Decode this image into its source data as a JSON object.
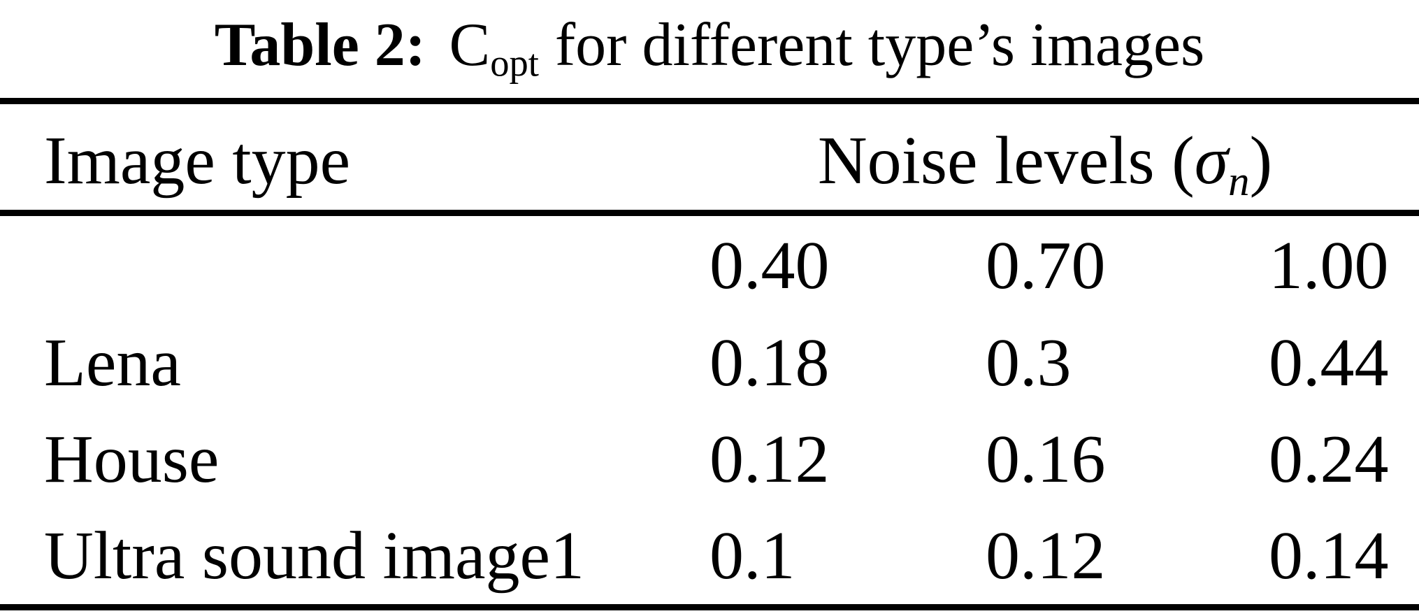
{
  "title": {
    "prefix": "Table 2:",
    "symbol_base": "C",
    "symbol_sub": "opt",
    "suffix": "for different type’s images"
  },
  "table": {
    "col1_header": "Image type",
    "group_header": {
      "prefix": "Noise levels (",
      "sigma": "σ",
      "sigma_sub": "n",
      "suffix": ")"
    },
    "noise_levels": [
      "0.40",
      "0.70",
      "1.00"
    ],
    "rows": [
      {
        "label": "Lena",
        "values": [
          "0.18",
          "0.3",
          "0.44"
        ]
      },
      {
        "label": "House",
        "values": [
          "0.12",
          "0.16",
          "0.24"
        ]
      },
      {
        "label": "Ultra sound image1",
        "values": [
          "0.1",
          "0.12",
          "0.14"
        ]
      }
    ]
  },
  "chart_data": {
    "type": "table",
    "title": "Table 2: Copt for different type's images",
    "column_group": "Noise levels (σn)",
    "columns": [
      "Image type",
      "0.40",
      "0.70",
      "1.00"
    ],
    "rows": [
      [
        "Lena",
        0.18,
        0.3,
        0.44
      ],
      [
        "House",
        0.12,
        0.16,
        0.24
      ],
      [
        "Ultra sound image1",
        0.1,
        0.12,
        0.14
      ]
    ]
  },
  "colors": {
    "background": "#ffffff",
    "text": "#000000",
    "rule": "#000000"
  }
}
